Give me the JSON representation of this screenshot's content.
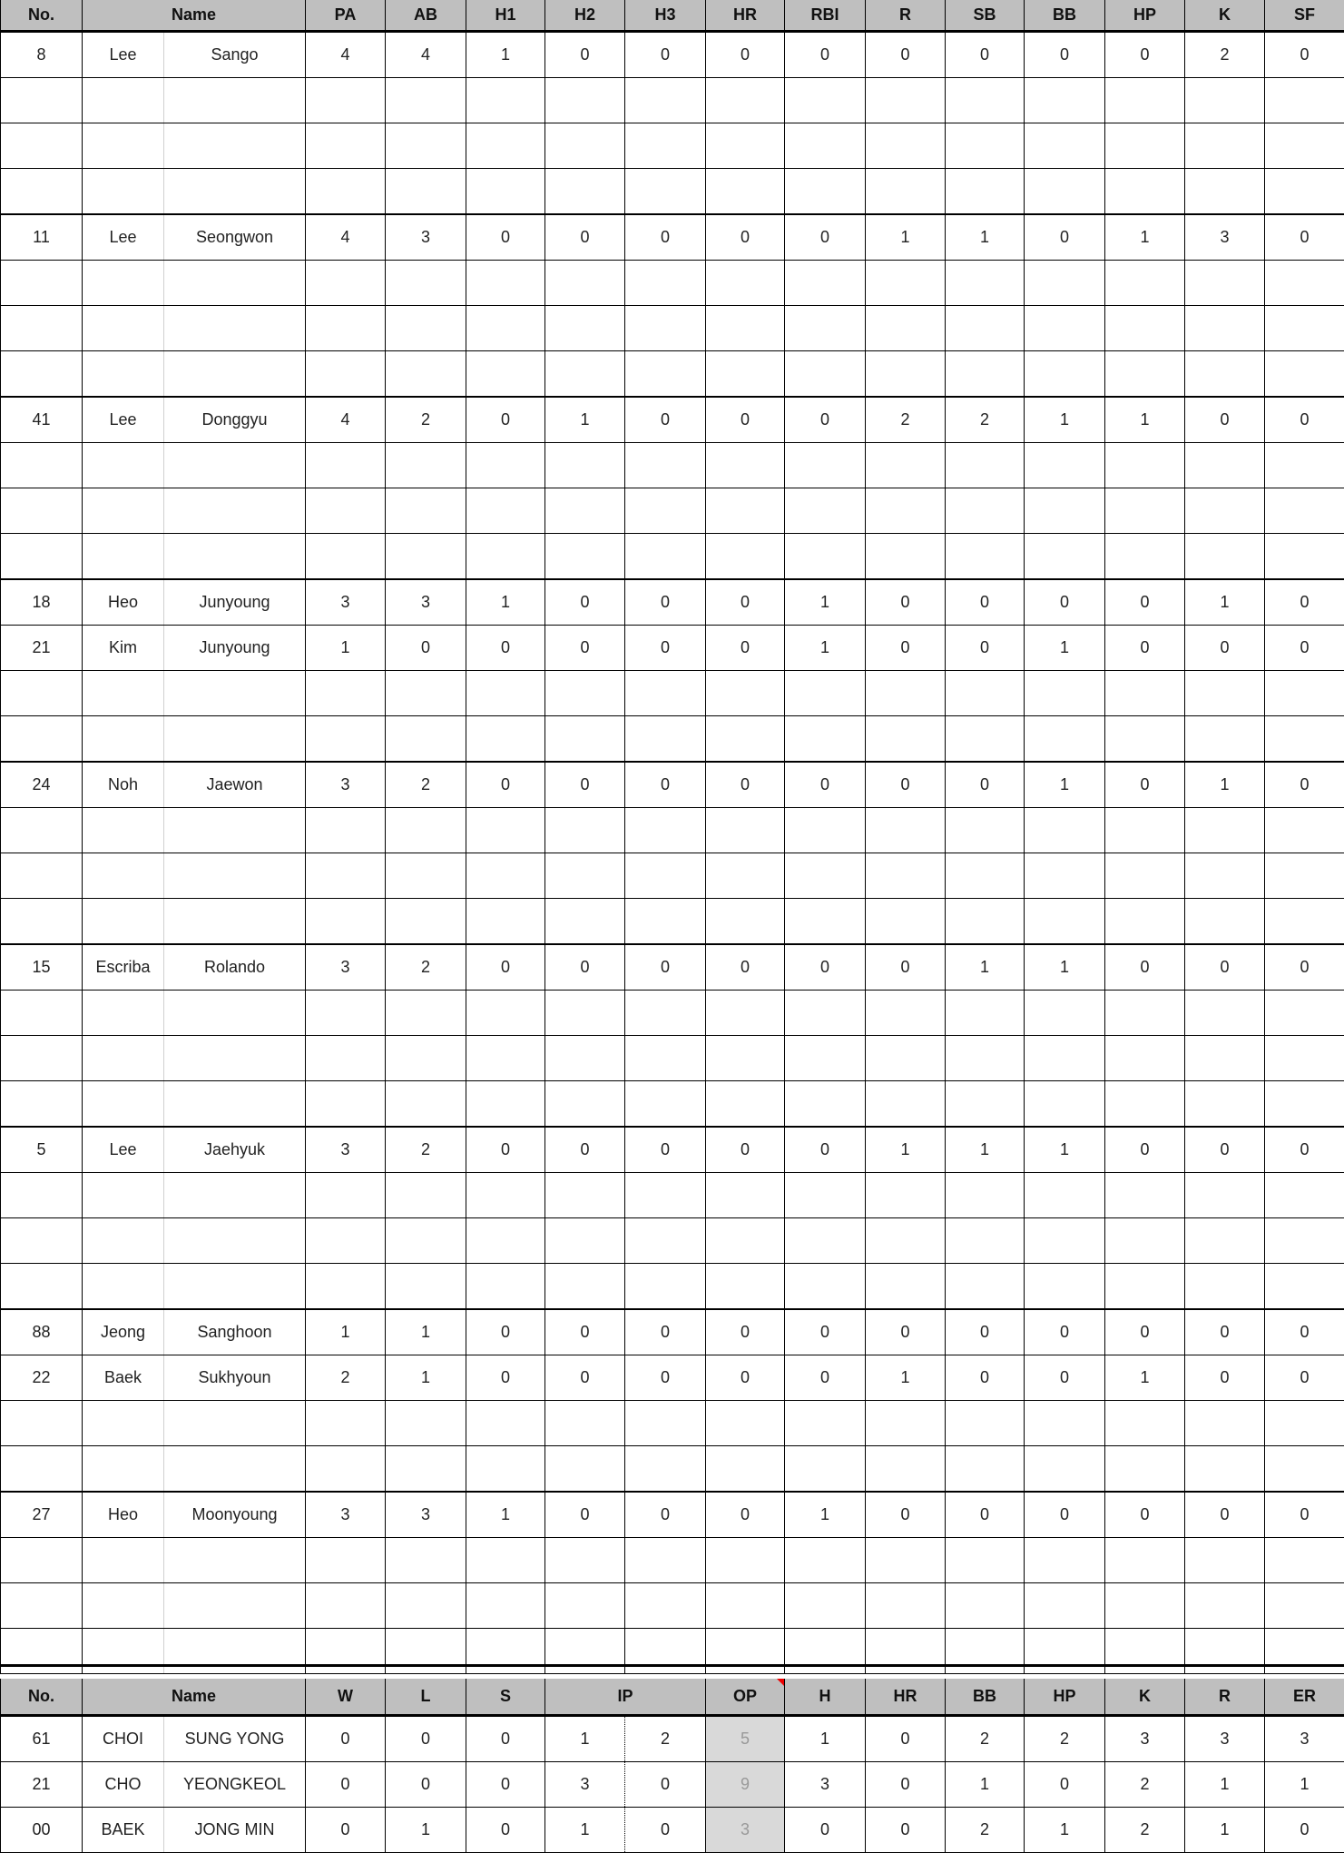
{
  "batting": {
    "headers": [
      "No.",
      "Name",
      "PA",
      "AB",
      "H1",
      "H2",
      "H3",
      "HR",
      "RBI",
      "R",
      "SB",
      "BB",
      "HP",
      "K",
      "SF"
    ],
    "groups": [
      {
        "players": [
          [
            "8",
            "Lee",
            "Sango",
            "4",
            "4",
            "1",
            "0",
            "0",
            "0",
            "0",
            "0",
            "0",
            "0",
            "0",
            "2",
            "0"
          ]
        ],
        "comment_marker": false
      },
      {
        "players": [
          [
            "11",
            "Lee",
            "Seongwon",
            "4",
            "3",
            "0",
            "0",
            "0",
            "0",
            "0",
            "1",
            "1",
            "0",
            "1",
            "3",
            "0"
          ]
        ],
        "comment_marker": true
      },
      {
        "players": [
          [
            "41",
            "Lee",
            "Donggyu",
            "4",
            "2",
            "0",
            "1",
            "0",
            "0",
            "0",
            "2",
            "2",
            "1",
            "1",
            "0",
            "0"
          ]
        ],
        "comment_marker": true
      },
      {
        "players": [
          [
            "18",
            "Heo",
            "Junyoung",
            "3",
            "3",
            "1",
            "0",
            "0",
            "0",
            "1",
            "0",
            "0",
            "0",
            "0",
            "1",
            "0"
          ],
          [
            "21",
            "Kim",
            "Junyoung",
            "1",
            "0",
            "0",
            "0",
            "0",
            "0",
            "1",
            "0",
            "0",
            "1",
            "0",
            "0",
            "0"
          ]
        ],
        "comment_marker": true
      },
      {
        "players": [
          [
            "24",
            "Noh",
            "Jaewon",
            "3",
            "2",
            "0",
            "0",
            "0",
            "0",
            "0",
            "0",
            "0",
            "1",
            "0",
            "1",
            "0"
          ]
        ],
        "comment_marker": true
      },
      {
        "players": [
          [
            "15",
            "Escriba",
            "Rolando",
            "3",
            "2",
            "0",
            "0",
            "0",
            "0",
            "0",
            "0",
            "1",
            "1",
            "0",
            "0",
            "0"
          ]
        ],
        "comment_marker": true
      },
      {
        "players": [
          [
            "5",
            "Lee",
            "Jaehyuk",
            "3",
            "2",
            "0",
            "0",
            "0",
            "0",
            "0",
            "1",
            "1",
            "1",
            "0",
            "0",
            "0"
          ]
        ],
        "comment_marker": true
      },
      {
        "players": [
          [
            "88",
            "Jeong",
            "Sanghoon",
            "1",
            "1",
            "0",
            "0",
            "0",
            "0",
            "0",
            "0",
            "0",
            "0",
            "0",
            "0",
            "0"
          ],
          [
            "22",
            "Baek",
            "Sukhyoun",
            "2",
            "1",
            "0",
            "0",
            "0",
            "0",
            "0",
            "1",
            "0",
            "0",
            "1",
            "0",
            "0"
          ]
        ],
        "comment_marker": false
      },
      {
        "players": [
          [
            "27",
            "Heo",
            "Moonyoung",
            "3",
            "3",
            "1",
            "0",
            "0",
            "0",
            "1",
            "0",
            "0",
            "0",
            "0",
            "0",
            "0"
          ]
        ],
        "comment_marker": false
      }
    ]
  },
  "pitching": {
    "headers": [
      "No.",
      "Name",
      "W",
      "L",
      "S",
      "IP",
      "OP",
      "H",
      "HR",
      "BB",
      "HP",
      "K",
      "R",
      "ER"
    ],
    "rows": [
      [
        "61",
        "CHOI",
        "SUNG YONG",
        "0",
        "0",
        "0",
        "1",
        "2",
        "5",
        "1",
        "0",
        "2",
        "2",
        "3",
        "3",
        "3"
      ],
      [
        "21",
        "CHO",
        "YEONGKEOL",
        "0",
        "0",
        "0",
        "3",
        "0",
        "9",
        "3",
        "0",
        "1",
        "0",
        "2",
        "1",
        "1"
      ],
      [
        "00",
        "BAEK",
        "JONG MIN",
        "0",
        "1",
        "0",
        "1",
        "0",
        "3",
        "0",
        "0",
        "2",
        "1",
        "2",
        "1",
        "0"
      ]
    ]
  },
  "colors": {
    "header_bg": "#bfbfbf",
    "op_bg": "#d9d9d9",
    "comment_marker": "#1a7a1a",
    "note_marker": "#e00000"
  }
}
